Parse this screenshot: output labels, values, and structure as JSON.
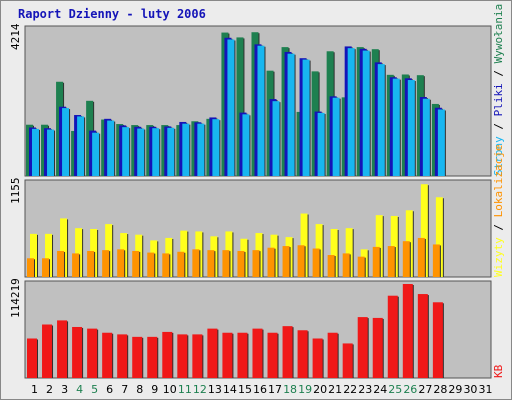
{
  "chart_data": [
    {
      "type": "bar",
      "title": "Raport Dzienny -  luty 2006",
      "panel": "top",
      "max_label": "4214",
      "legend": [
        "Wywołania",
        "Pliki",
        "Strony"
      ],
      "legend_separator": "/",
      "categories": [
        "1",
        "2",
        "3",
        "4",
        "5",
        "6",
        "7",
        "8",
        "9",
        "10",
        "11",
        "12",
        "13",
        "14",
        "15",
        "16",
        "17",
        "18",
        "19",
        "20",
        "21",
        "22",
        "23",
        "24",
        "25",
        "26",
        "27",
        "28",
        "29",
        "30",
        "31"
      ],
      "weekend_days": [
        "4",
        "5",
        "11",
        "12",
        "18",
        "19",
        "25",
        "26"
      ],
      "series": [
        {
          "name": "Wywołania",
          "color": "#1e8050",
          "values": [
            1480,
            1480,
            2720,
            1300,
            2170,
            1630,
            1500,
            1470,
            1470,
            1470,
            1470,
            1580,
            1650,
            4140,
            4000,
            4150,
            3040,
            3720,
            1850,
            3020,
            3600,
            2270,
            3720,
            3660,
            2920,
            2930,
            2910,
            2080,
            null,
            null,
            null
          ]
        },
        {
          "name": "Pliki",
          "color": "#1414b8",
          "values": [
            1400,
            1380,
            2000,
            1760,
            1310,
            1650,
            1460,
            1420,
            1420,
            1430,
            1560,
            1550,
            1690,
            3990,
            1830,
            3800,
            2220,
            3580,
            3400,
            1860,
            2300,
            3740,
            3670,
            3280,
            2850,
            2820,
            2280,
            1970,
            null,
            null,
            null
          ]
        },
        {
          "name": "Strony",
          "color": "#18b6f0",
          "values": [
            1360,
            1340,
            1960,
            1720,
            1250,
            1600,
            1410,
            1370,
            1380,
            1390,
            1510,
            1510,
            1640,
            3940,
            1780,
            3760,
            2160,
            3530,
            3360,
            1820,
            2260,
            3690,
            3620,
            3230,
            2810,
            2770,
            2230,
            1920,
            null,
            null,
            null
          ]
        }
      ]
    },
    {
      "type": "bar",
      "panel": "middle",
      "max_label": "1155",
      "legend": [
        "Lokalizacje",
        "Wizyty"
      ],
      "legend_separator": "/",
      "categories": [
        "1",
        "2",
        "3",
        "4",
        "5",
        "6",
        "7",
        "8",
        "9",
        "10",
        "11",
        "12",
        "13",
        "14",
        "15",
        "16",
        "17",
        "18",
        "19",
        "20",
        "21",
        "22",
        "23",
        "24",
        "25",
        "26",
        "27",
        "28",
        "29",
        "30",
        "31"
      ],
      "series": [
        {
          "name": "Wizyty",
          "color": "#ffff1c",
          "values": [
            530,
            530,
            720,
            600,
            590,
            650,
            540,
            520,
            450,
            480,
            570,
            560,
            500,
            560,
            470,
            540,
            520,
            490,
            780,
            650,
            590,
            600,
            340,
            760,
            750,
            820,
            1140,
            980,
            null,
            null,
            null
          ]
        },
        {
          "name": "Lokalizacje",
          "color": "#ff9300",
          "values": [
            230,
            230,
            320,
            290,
            320,
            330,
            340,
            320,
            300,
            290,
            310,
            340,
            330,
            330,
            320,
            330,
            360,
            380,
            390,
            350,
            270,
            290,
            250,
            370,
            380,
            440,
            480,
            400,
            null,
            null,
            null
          ]
        }
      ]
    },
    {
      "type": "bar",
      "panel": "bottom",
      "max_label": "114219",
      "legend": [
        "KB"
      ],
      "categories": [
        "1",
        "2",
        "3",
        "4",
        "5",
        "6",
        "7",
        "8",
        "9",
        "10",
        "11",
        "12",
        "13",
        "14",
        "15",
        "16",
        "17",
        "18",
        "19",
        "20",
        "21",
        "22",
        "23",
        "24",
        "25",
        "26",
        "27",
        "28",
        "29",
        "30",
        "31"
      ],
      "series": [
        {
          "name": "KB",
          "color": "#f01818",
          "values": [
            48000,
            65000,
            70000,
            62000,
            60000,
            55000,
            53000,
            50000,
            50000,
            56000,
            53000,
            53000,
            60000,
            55000,
            55000,
            60000,
            55000,
            63000,
            58000,
            48000,
            55000,
            42000,
            74000,
            73000,
            100000,
            114219,
            102000,
            92000,
            null,
            null,
            null
          ]
        }
      ]
    }
  ],
  "colors": {
    "plot_bg": "#c0c0c0",
    "frame_bg": "#ececec",
    "title": "#1414b8",
    "weekday_label": "#000000",
    "weekend_label": "#1e8050"
  }
}
